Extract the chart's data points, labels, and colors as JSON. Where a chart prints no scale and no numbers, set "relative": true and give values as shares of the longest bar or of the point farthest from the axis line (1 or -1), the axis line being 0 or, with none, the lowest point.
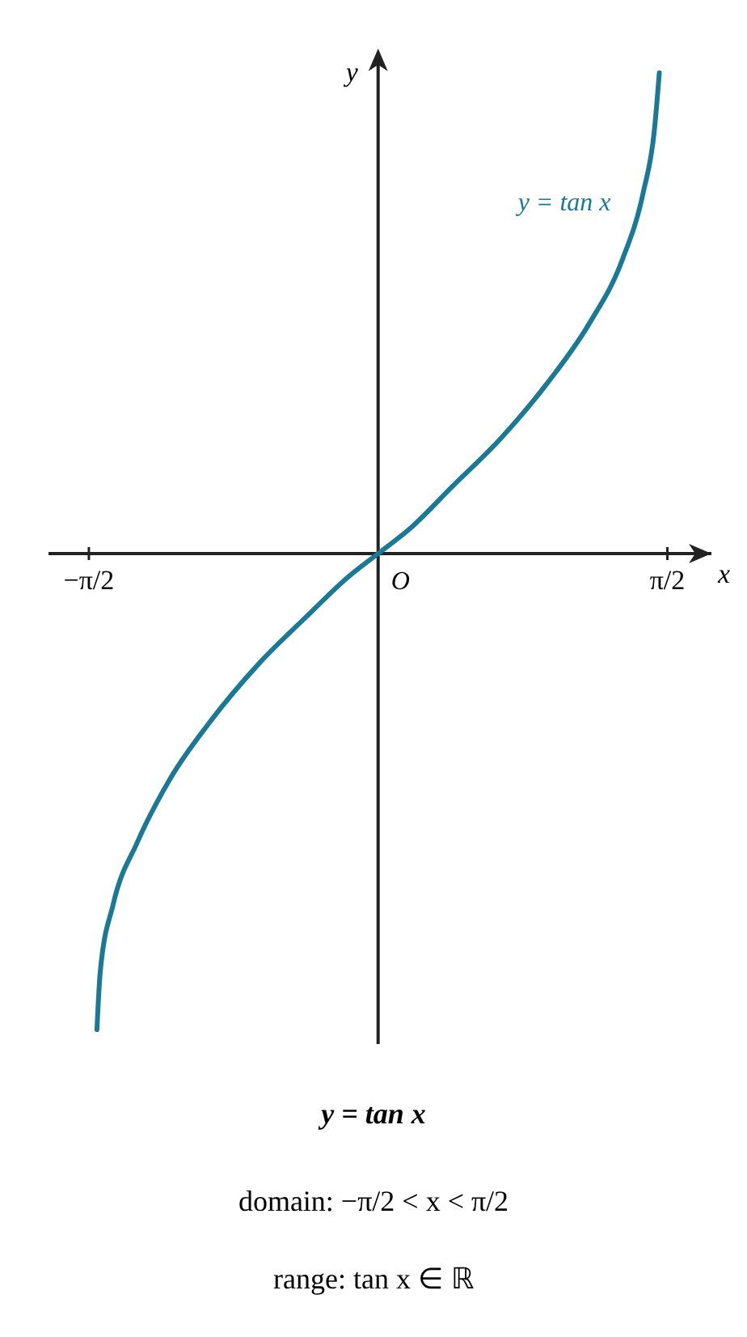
{
  "chart_data": {
    "type": "line",
    "title": "y = tan x",
    "xlabel": "x",
    "ylabel": "y",
    "relative": true,
    "xlim": [
      -1.79,
      1.81
    ],
    "xticks": [
      {
        "value": -1.5708,
        "label": "−π/2"
      },
      {
        "value": 1.5708,
        "label": "π/2"
      }
    ],
    "x": [
      -1.527,
      -1.509,
      -1.439,
      -1.307,
      -1.132,
      -0.913,
      -0.65,
      -0.386,
      -0.167,
      0,
      0.167,
      0.404,
      0.667,
      0.93,
      1.149,
      1.325,
      1.439,
      1.5,
      1.527
    ],
    "series": [
      {
        "name": "y = tan x",
        "color": "#1a7a96",
        "values": [
          -0.99,
          -0.87,
          -0.73,
          -0.6,
          -0.47,
          -0.35,
          -0.23,
          -0.13,
          -0.05,
          0,
          0.05,
          0.14,
          0.24,
          0.36,
          0.48,
          0.61,
          0.75,
          0.88,
          1
        ]
      }
    ],
    "annotations": [
      {
        "text": "O",
        "x": 0,
        "y": 0
      },
      "domain: −π/2 < x < π/2",
      "range: tan x ∈ ℝ"
    ]
  }
}
